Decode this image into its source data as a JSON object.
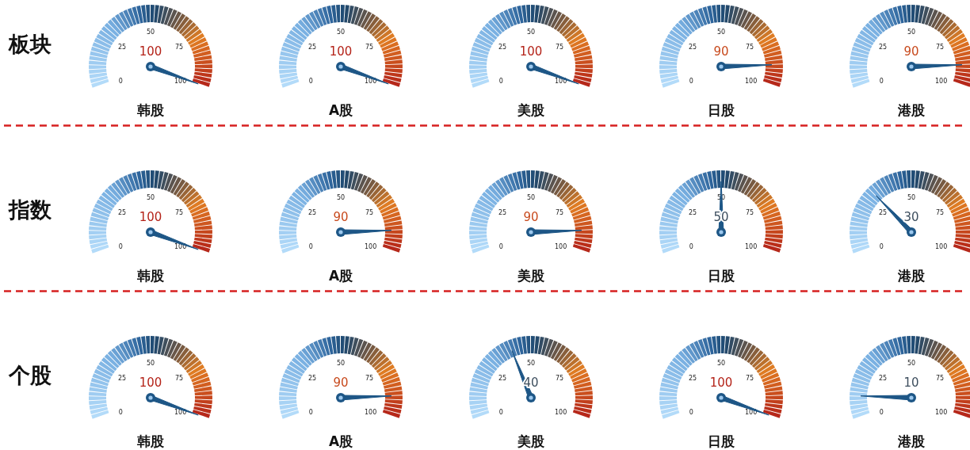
{
  "chart_data": [
    {
      "type": "other",
      "title": "板块",
      "xlabel": "韩股",
      "values": [
        100
      ],
      "annotations": [
        "0",
        "25",
        "50",
        "75",
        "100"
      ],
      "data_labels": true,
      "colors": [
        "#1d5686"
      ]
    },
    {
      "type": "other",
      "xlabel": "A股",
      "values": [
        100
      ],
      "annotations": [
        "0",
        "25",
        "50",
        "75",
        "100"
      ],
      "data_labels": true,
      "colors": [
        "#1d5686"
      ]
    },
    {
      "type": "other",
      "xlabel": "美股",
      "values": [
        100
      ],
      "annotations": [
        "0",
        "25",
        "50",
        "75",
        "100"
      ],
      "data_labels": true,
      "colors": [
        "#1d5686"
      ]
    },
    {
      "type": "other",
      "xlabel": "日股",
      "values": [
        90
      ],
      "annotations": [
        "0",
        "25",
        "50",
        "75",
        "100"
      ],
      "data_labels": true,
      "colors": [
        "#1d5686"
      ]
    },
    {
      "type": "other",
      "xlabel": "港股",
      "values": [
        90
      ],
      "annotations": [
        "0",
        "25",
        "50",
        "75",
        "100"
      ],
      "data_labels": true,
      "colors": [
        "#1d5686"
      ]
    },
    {
      "type": "other",
      "title": "指数",
      "xlabel": "韩股",
      "values": [
        100
      ],
      "annotations": [
        "0",
        "25",
        "50",
        "75",
        "100"
      ],
      "data_labels": true,
      "colors": [
        "#1d5686"
      ]
    },
    {
      "type": "other",
      "xlabel": "A股",
      "values": [
        90
      ],
      "annotations": [
        "0",
        "25",
        "50",
        "75",
        "100"
      ],
      "data_labels": true,
      "colors": [
        "#1d5686"
      ]
    },
    {
      "type": "other",
      "xlabel": "美股",
      "values": [
        90
      ],
      "annotations": [
        "0",
        "25",
        "50",
        "75",
        "100"
      ],
      "data_labels": true,
      "colors": [
        "#1d5686"
      ]
    },
    {
      "type": "other",
      "xlabel": "日股",
      "values": [
        50
      ],
      "annotations": [
        "0",
        "25",
        "50",
        "75",
        "100"
      ],
      "data_labels": true,
      "colors": [
        "#1d5686"
      ]
    },
    {
      "type": "other",
      "xlabel": "港股",
      "values": [
        30
      ],
      "annotations": [
        "0",
        "25",
        "50",
        "75",
        "100"
      ],
      "data_labels": true,
      "colors": [
        "#1d5686"
      ]
    },
    {
      "type": "other",
      "title": "个股",
      "xlabel": "韩股",
      "values": [
        100
      ],
      "annotations": [
        "0",
        "25",
        "50",
        "75",
        "100"
      ],
      "data_labels": true,
      "colors": [
        "#1d5686"
      ]
    },
    {
      "type": "other",
      "xlabel": "A股",
      "values": [
        90
      ],
      "annotations": [
        "0",
        "25",
        "50",
        "75",
        "100"
      ],
      "data_labels": true,
      "colors": [
        "#1d5686"
      ]
    },
    {
      "type": "other",
      "xlabel": "美股",
      "values": [
        40
      ],
      "annotations": [
        "0",
        "25",
        "50",
        "75",
        "100"
      ],
      "data_labels": true,
      "colors": [
        "#1d5686"
      ]
    },
    {
      "type": "other",
      "xlabel": "日股",
      "values": [
        100
      ],
      "annotations": [
        "0",
        "25",
        "50",
        "75",
        "100"
      ],
      "data_labels": true,
      "colors": [
        "#1d5686"
      ]
    },
    {
      "type": "other",
      "xlabel": "港股",
      "values": [
        10
      ],
      "annotations": [
        "0",
        "25",
        "50",
        "75",
        "100"
      ],
      "data_labels": true,
      "colors": [
        "#1d5686"
      ]
    }
  ]
}
